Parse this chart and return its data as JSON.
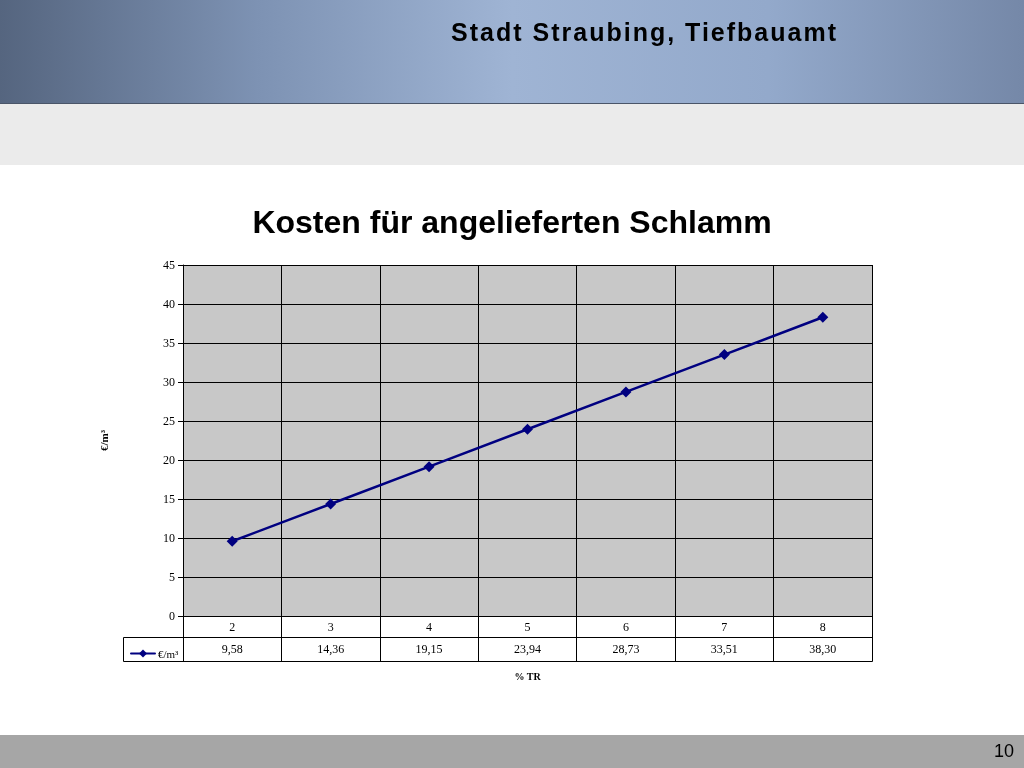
{
  "chart_data": {
    "type": "line",
    "title": "Kosten für angelieferten Schlamm",
    "xlabel": "% TR",
    "ylabel": "€/m³",
    "annotations": [
      "Stadt Straubing, Tiefbauamt",
      "10"
    ],
    "categories": [
      "2",
      "3",
      "4",
      "5",
      "6",
      "7",
      "8"
    ],
    "series": [
      {
        "name": "€/m³",
        "color": "#000080",
        "values": [
          9.58,
          14.36,
          19.15,
          23.94,
          28.73,
          33.51,
          38.3
        ],
        "value_labels": [
          "9,58",
          "14,36",
          "19,15",
          "23,94",
          "28,73",
          "33,51",
          "38,30"
        ]
      }
    ],
    "ylim": [
      0,
      45
    ],
    "yticks": [
      0,
      5,
      10,
      15,
      20,
      25,
      30,
      35,
      40,
      45
    ],
    "grid": true,
    "legend": "bottom left",
    "marker": "diamond",
    "line_style": "solid"
  }
}
